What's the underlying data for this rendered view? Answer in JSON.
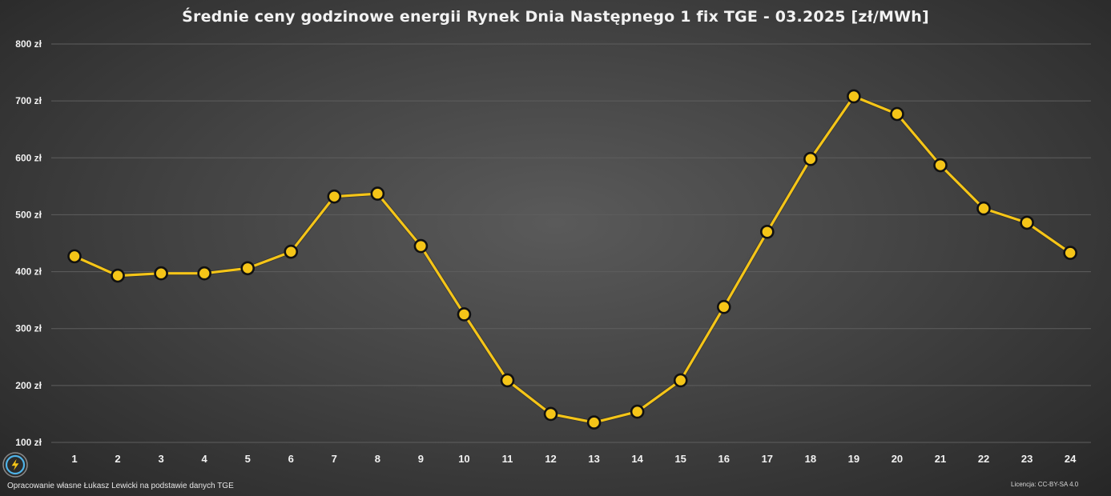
{
  "chart_data": {
    "type": "line",
    "title": "Średnie ceny godzinowe energii Rynek Dnia Następnego 1 fix TGE - 03.2025 [zł/MWh]",
    "xlabel": "",
    "ylabel": "",
    "categories": [
      "1",
      "2",
      "3",
      "4",
      "5",
      "6",
      "7",
      "8",
      "9",
      "10",
      "11",
      "12",
      "13",
      "14",
      "15",
      "16",
      "17",
      "18",
      "19",
      "20",
      "21",
      "22",
      "23",
      "24"
    ],
    "series": [
      {
        "values": [
          427,
          393,
          397,
          397,
          406,
          435,
          532,
          537,
          445,
          325,
          209,
          150,
          135,
          154,
          209,
          338,
          470,
          598,
          708,
          677,
          587,
          511,
          486,
          433
        ]
      }
    ],
    "y_ticks": [
      100,
      200,
      300,
      400,
      500,
      600,
      700,
      800
    ],
    "y_tick_labels": [
      "100 zł",
      "200 zł",
      "300 zł",
      "400 zł",
      "500 zł",
      "600 zł",
      "700 zł",
      "800 zł"
    ],
    "ylim": [
      100,
      800
    ],
    "grid": true,
    "legend": "none",
    "colors": {
      "line": "#f5c518",
      "marker_fill": "#f5c518",
      "marker_edge": "#111111",
      "grid": "#5e5e5e",
      "text": "#f2f2f2"
    }
  },
  "footer": {
    "credit": "Opracowanie własne Łukasz Lewicki na podstawie danych TGE",
    "license": "Licencja: CC-BY-SA 4.0"
  },
  "logo": {
    "icon": "lightning-bolt-icon"
  }
}
